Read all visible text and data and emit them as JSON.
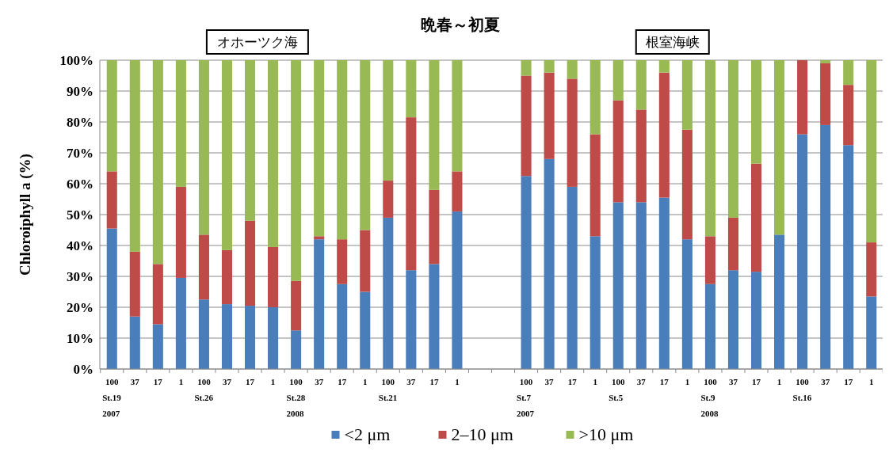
{
  "chart_data": {
    "type": "bar",
    "stacked": true,
    "title": "晩春～初夏",
    "ylabel": "Chloroiphyll a (%)",
    "annotations": [
      "オホーツク海",
      "根室海峡"
    ],
    "categories": [
      "100\nSt.19\n2007",
      "37",
      "17",
      "1",
      "100\nSt.26",
      "37",
      "17",
      "1",
      "100\nSt.28\n2008",
      "37",
      "17",
      "1",
      "100\nSt.21",
      "37",
      "17",
      "1",
      null,
      null,
      "100\nSt.7\n2007",
      "37",
      "17",
      "1",
      "100\nSt.5",
      "37",
      "17",
      "1",
      "100\nSt.9\n2008",
      "37",
      "17",
      "1",
      "100\nSt.16",
      "37",
      "17",
      "1"
    ],
    "series": [
      {
        "name": "<2 μm",
        "color": "#4a7ebb",
        "values": [
          45.5,
          17,
          14.5,
          29.5,
          22.5,
          21,
          20.5,
          20,
          12.5,
          42,
          27.5,
          25,
          49,
          32,
          34,
          51,
          null,
          null,
          62.5,
          68,
          59,
          43,
          54,
          54,
          55.5,
          42,
          27.5,
          32,
          31.5,
          43.5,
          76,
          79,
          72.5,
          23.5
        ]
      },
      {
        "name": "2–10 μm",
        "color": "#be4b48",
        "values": [
          18.5,
          21,
          19.5,
          29.5,
          21,
          17.5,
          27.5,
          19.5,
          16,
          1,
          14.5,
          20,
          12,
          49.5,
          24,
          13,
          null,
          null,
          32.5,
          28,
          35,
          33,
          33,
          30,
          40.5,
          35.5,
          15.5,
          17,
          35,
          0,
          24,
          20,
          19.5,
          17.5
        ]
      },
      {
        "name": ">10 μm",
        "color": "#98b954",
        "values": [
          36,
          62,
          66,
          41,
          56.5,
          61.5,
          52,
          60.5,
          71.5,
          57,
          58,
          55,
          39,
          18.5,
          42,
          36,
          null,
          null,
          5,
          4,
          6,
          24,
          13,
          16,
          4,
          22.5,
          57,
          51,
          33.5,
          56.5,
          0,
          1,
          8,
          59
        ]
      }
    ],
    "ylim": [
      0,
      100
    ],
    "yticks": [
      {
        "value": 0,
        "label": "0%"
      },
      {
        "value": 10,
        "label": "10%"
      },
      {
        "value": 20,
        "label": "20%"
      },
      {
        "value": 30,
        "label": "30%"
      },
      {
        "value": 40,
        "label": "40%"
      },
      {
        "value": 50,
        "label": "50%"
      },
      {
        "value": 60,
        "label": "60%"
      },
      {
        "value": 70,
        "label": "70%"
      },
      {
        "value": 80,
        "label": "80%"
      },
      {
        "value": 90,
        "label": "90%"
      },
      {
        "value": 100,
        "label": "100%"
      }
    ],
    "grid": "y",
    "legend": "bottom"
  }
}
